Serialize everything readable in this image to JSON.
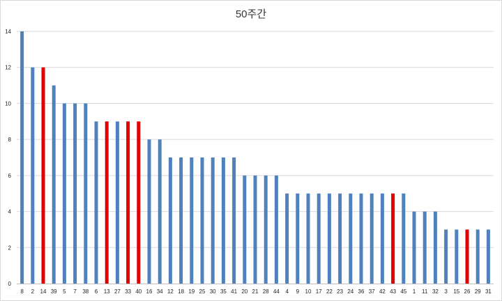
{
  "chart_data": {
    "type": "bar",
    "title": "50주간",
    "xlabel": "",
    "ylabel": "",
    "ylim": [
      0,
      14
    ],
    "yticks": [
      0,
      2,
      4,
      6,
      8,
      10,
      12,
      14
    ],
    "grid": true,
    "legend": "none",
    "categories": [
      "8",
      "2",
      "14",
      "39",
      "5",
      "7",
      "38",
      "6",
      "13",
      "27",
      "33",
      "40",
      "16",
      "34",
      "12",
      "18",
      "19",
      "25",
      "30",
      "35",
      "41",
      "20",
      "21",
      "28",
      "44",
      "4",
      "9",
      "10",
      "17",
      "22",
      "23",
      "24",
      "36",
      "37",
      "42",
      "43",
      "45",
      "1",
      "11",
      "32",
      "3",
      "15",
      "26",
      "29",
      "31"
    ],
    "values": [
      14,
      12,
      12,
      11,
      10,
      10,
      10,
      9,
      9,
      9,
      9,
      9,
      8,
      8,
      7,
      7,
      7,
      7,
      7,
      7,
      7,
      6,
      6,
      6,
      6,
      5,
      5,
      5,
      5,
      5,
      5,
      5,
      5,
      5,
      5,
      5,
      5,
      4,
      4,
      4,
      3,
      3,
      3,
      3,
      3
    ],
    "highlighted": [
      "14",
      "13",
      "33",
      "40",
      "43",
      "26"
    ],
    "colors": {
      "bar": "#4f81bd",
      "highlight": "#e00000",
      "grid": "#d9d9d9",
      "axis": "#bfbfbf"
    }
  }
}
